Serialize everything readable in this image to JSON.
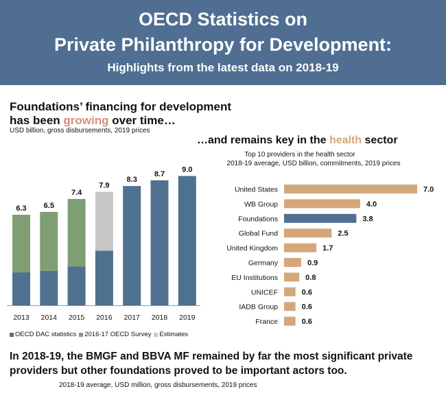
{
  "header": {
    "line1": "OECD Statistics on",
    "line2": "Private Philanthropy for Development:",
    "line3": "Highlights from the latest data on 2018-19"
  },
  "left": {
    "title_a": "Foundations’ financing for development",
    "title_b_pre": "has been ",
    "title_b_hl": "growing",
    "title_b_post": " over time…",
    "subtitle": "USD billion, gross disbursements, 2019 prices",
    "legend": [
      "OECD DAC statistics",
      "2016-17 OECD Survey",
      "Estimates"
    ]
  },
  "right": {
    "title_pre": "…and remains key in the ",
    "title_hl": "health",
    "title_post": " sector",
    "subtitle1": "Top 10 providers in the health sector",
    "subtitle2": "2018-19 average, USD billion, commitments, 2019 prices"
  },
  "bottom": {
    "text": "In 2018-19, the BMGF and BBVA MF remained by far the most significant private providers but other foundations proved to be important actors too.",
    "subtitle": "2018-19 average, USD million, gross disbursements, 2019 prices"
  },
  "colors": {
    "header_bg": "#4f6e91",
    "dac": "#4f7190",
    "survey": "#7f9e74",
    "estimates": "#c7c7c7",
    "health": "#d4a77a",
    "foundations": "#4f7190"
  },
  "chart_data": [
    {
      "type": "bar",
      "stacked": true,
      "categories": [
        "2013",
        "2014",
        "2015",
        "2016",
        "2017",
        "2018",
        "2019"
      ],
      "totals": [
        "6.3",
        "6.5",
        "7.4",
        "7.9",
        "8.3",
        "8.7",
        "9.0"
      ],
      "series": [
        {
          "name": "OECD DAC statistics",
          "values": [
            2.3,
            2.4,
            2.7,
            3.8,
            8.3,
            8.7,
            9.0
          ]
        },
        {
          "name": "2016-17 OECD Survey",
          "values": [
            4.0,
            4.1,
            4.7,
            0,
            0,
            0,
            0
          ]
        },
        {
          "name": "Estimates",
          "values": [
            0,
            0,
            0,
            4.1,
            0,
            0,
            0
          ]
        }
      ],
      "ylim": [
        0,
        9.5
      ],
      "grid": false,
      "legend_position": "bottom"
    },
    {
      "type": "bar",
      "orientation": "horizontal",
      "categories": [
        "United States",
        "WB Group",
        "Foundations",
        "Global Fund",
        "United Kingdom",
        "Germany",
        "EU Institutions",
        "UNICEF",
        "IADB Group",
        "France"
      ],
      "values": [
        7.0,
        4.0,
        3.8,
        2.5,
        1.7,
        0.9,
        0.8,
        0.6,
        0.6,
        0.6
      ],
      "labels": [
        "7.0",
        "4.0",
        "3.8",
        "2.5",
        "1.7",
        "0.9",
        "0.8",
        "0.6",
        "0.6",
        "0.6"
      ],
      "highlight_category": "Foundations",
      "xlim": [
        0,
        7.0
      ],
      "grid": false
    }
  ]
}
